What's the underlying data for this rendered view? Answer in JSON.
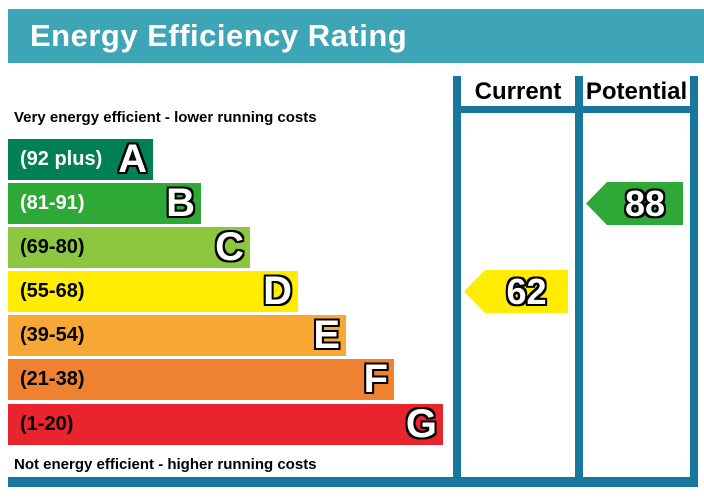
{
  "title": "Energy Efficiency Rating",
  "columns": {
    "current": "Current",
    "potential": "Potential"
  },
  "top_note": "Very energy efficient - lower running costs",
  "bottom_note": "Not energy efficient - higher running costs",
  "colors": {
    "title_bar": "#3EA5B6",
    "frame_lines": "#17779C",
    "note_text": "#000000"
  },
  "bands": [
    {
      "letter": "A",
      "range": "(92 plus)",
      "color": "#008054",
      "text_color": "#ffffff"
    },
    {
      "letter": "B",
      "range": "(81-91)",
      "color": "#2EA836",
      "text_color": "#ffffff"
    },
    {
      "letter": "C",
      "range": "(69-80)",
      "color": "#8DC63F",
      "text_color": "#000000"
    },
    {
      "letter": "D",
      "range": "(55-68)",
      "color": "#FFEC00",
      "text_color": "#000000"
    },
    {
      "letter": "E",
      "range": "(39-54)",
      "color": "#F7A834",
      "text_color": "#000000"
    },
    {
      "letter": "F",
      "range": "(21-38)",
      "color": "#EE8231",
      "text_color": "#000000"
    },
    {
      "letter": "G",
      "range": "(1-20)",
      "color": "#E9242C",
      "text_color": "#000000"
    }
  ],
  "ratings": {
    "current": {
      "label": "Current",
      "value": "62",
      "band": "D",
      "color": "#FFEC00"
    },
    "potential": {
      "label": "Potential",
      "value": "88",
      "band": "B",
      "color": "#2EA836"
    }
  },
  "chart_data": {
    "type": "bar",
    "title": "Energy Efficiency Rating",
    "orientation": "horizontal",
    "categories": [
      "A",
      "B",
      "C",
      "D",
      "E",
      "F",
      "G"
    ],
    "band_ranges": [
      "92 plus",
      "81-91",
      "69-80",
      "55-68",
      "39-54",
      "21-38",
      "1-20"
    ],
    "band_colors": [
      "#008054",
      "#2EA836",
      "#8DC63F",
      "#FFEC00",
      "#F7A834",
      "#EE8231",
      "#E9242C"
    ],
    "top_axis_note": "Very energy efficient - lower running costs",
    "bottom_axis_note": "Not energy efficient - higher running costs",
    "series": [
      {
        "name": "Current",
        "value": 62,
        "band": "D"
      },
      {
        "name": "Potential",
        "value": 88,
        "band": "B"
      }
    ],
    "value_range": [
      1,
      100
    ],
    "legend_position": "top-right-columns",
    "grid": false
  }
}
